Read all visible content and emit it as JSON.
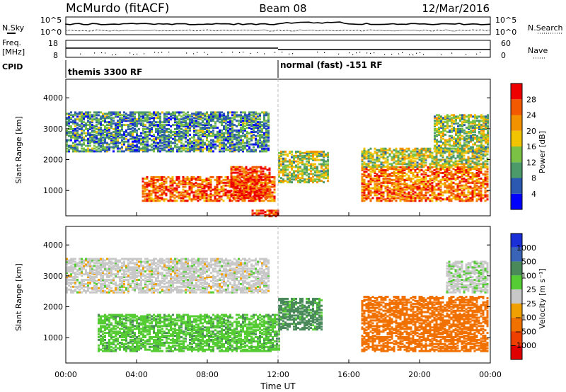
{
  "header": {
    "title": "McMurdo (fitACF)",
    "beam": "Beam 08",
    "date": "12/Mar/2016"
  },
  "top_panels": {
    "nsky_label": "N.Sky",
    "nsearch_label": "N.Search",
    "counts_ticks": [
      "10^5",
      "10^0"
    ],
    "freq_label_1": "Freq.",
    "freq_label_2": "[MHz]",
    "freq_ticks": [
      "18",
      "8"
    ],
    "nave_label": "Nave",
    "nave_ticks": [
      "60",
      "0"
    ],
    "cpid_label": "CPID",
    "cpid_segments": [
      {
        "start_hour": 0,
        "label": "themis 3300 RF"
      },
      {
        "start_hour": 12,
        "label": "normal (fast) -151 RF"
      }
    ]
  },
  "colors": {
    "power_scale": [
      "#0000ff",
      "#2b58b0",
      "#4c9a6a",
      "#7ac145",
      "#f2c400",
      "#f39200",
      "#f35a00",
      "#ee0000"
    ],
    "velocity_scale": [
      "#1a2fd8",
      "#3a64b8",
      "#4a8a5a",
      "#55cc33",
      "#c8c8c8",
      "#f0a000",
      "#f07000",
      "#f04000",
      "#e00000"
    ],
    "frame": "#000000"
  },
  "chart_data": [
    {
      "type": "heatmap",
      "name": "power",
      "ylabel": "Slant Range [km]",
      "xlabel": "Time UT",
      "xlim": [
        0,
        24
      ],
      "ylim": [
        180,
        4600
      ],
      "x_ticks": [
        "00:00",
        "04:00",
        "08:00",
        "12:00",
        "16:00",
        "20:00",
        "00:00"
      ],
      "y_ticks": [
        1000,
        2000,
        3000,
        4000
      ],
      "colorbar_label": "Power [dB]",
      "colorbar_ticks": [
        "4",
        "8",
        "12",
        "16",
        "20",
        "24",
        "28"
      ],
      "colorbar_range": [
        0,
        30
      ],
      "echo_regions": [
        {
          "t0": 4.3,
          "t1": 11.8,
          "r0": 700,
          "r1": 1500,
          "value": 24
        },
        {
          "t0": 9.3,
          "t1": 11.5,
          "r0": 800,
          "r1": 1800,
          "value": 26
        },
        {
          "t0": 12.0,
          "t1": 14.8,
          "r0": 1300,
          "r1": 2300,
          "value": 14
        },
        {
          "t0": 16.7,
          "t1": 23.9,
          "r0": 700,
          "r1": 1800,
          "value": 23
        },
        {
          "t0": 16.7,
          "t1": 23.9,
          "r0": 1800,
          "r1": 2400,
          "value": 14
        },
        {
          "t0": 0.0,
          "t1": 11.5,
          "r0": 2300,
          "r1": 3600,
          "value": 9
        },
        {
          "t0": 20.8,
          "t1": 23.9,
          "r0": 2300,
          "r1": 3500,
          "value": 13
        },
        {
          "t0": 10.5,
          "t1": 12.0,
          "r0": 200,
          "r1": 400,
          "value": 27
        }
      ]
    },
    {
      "type": "heatmap",
      "name": "velocity",
      "ylabel": "Slant Range [km]",
      "xlabel": "Time UT",
      "xlim": [
        0,
        24
      ],
      "ylim": [
        180,
        4600
      ],
      "x_ticks": [
        "00:00",
        "04:00",
        "08:00",
        "12:00",
        "16:00",
        "20:00",
        "00:00"
      ],
      "y_ticks": [
        1000,
        2000,
        3000,
        4000
      ],
      "colorbar_label": "Velocity [m s⁻¹]",
      "colorbar_ticks": [
        "1000",
        "500",
        "100",
        "25",
        "−25",
        "−100",
        "−500",
        "−1000"
      ],
      "echo_regions": [
        {
          "t0": 1.8,
          "t1": 12.0,
          "r0": 600,
          "r1": 1800,
          "value": 80
        },
        {
          "t0": 12.0,
          "t1": 14.5,
          "r0": 1300,
          "r1": 2300,
          "value": 120
        },
        {
          "t0": 16.7,
          "t1": 23.9,
          "r0": 600,
          "r1": 2400,
          "value": -300
        },
        {
          "t0": 0.0,
          "t1": 11.5,
          "r0": 2500,
          "r1": 3600,
          "value": 0
        },
        {
          "t0": 21.5,
          "t1": 23.9,
          "r0": 2500,
          "r1": 3500,
          "value": 10
        }
      ]
    }
  ]
}
